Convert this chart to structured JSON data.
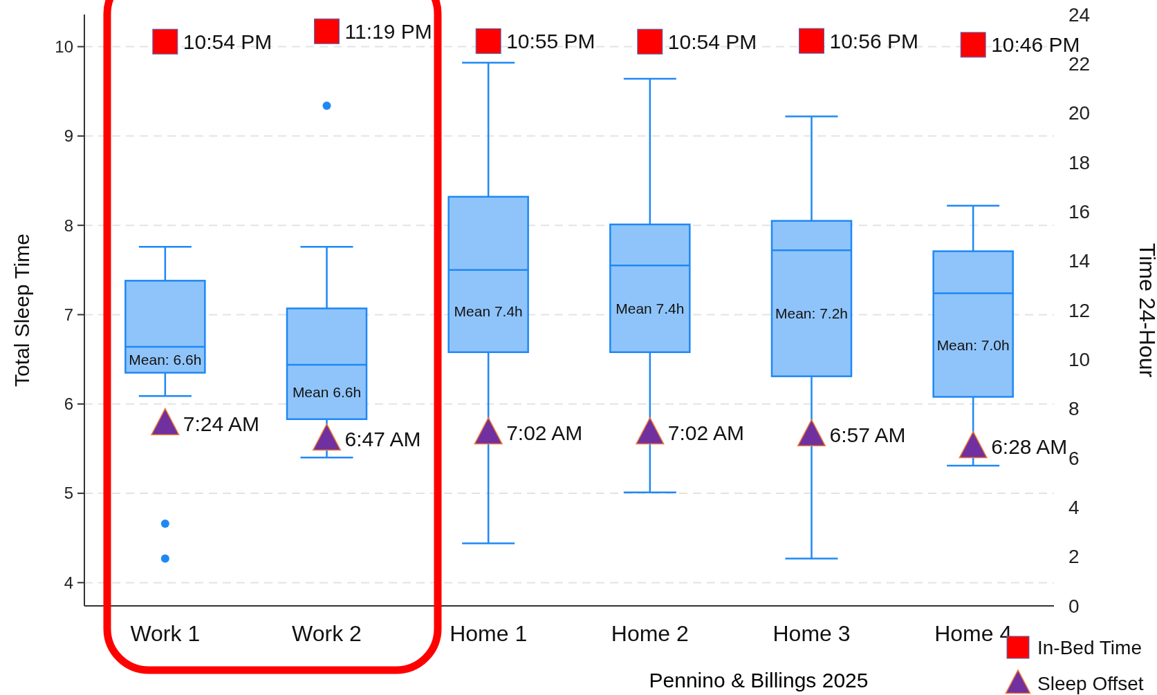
{
  "chart_data": {
    "type": "box",
    "ylabel": "Total Sleep Time",
    "y2label": "Time 24-Hour",
    "categories": [
      "Work 1",
      "Work 2",
      "Home 1",
      "Home 2",
      "Home 3",
      "Home 4"
    ],
    "ylim": [
      3.74,
      10.36
    ],
    "yticks": [
      4,
      5,
      6,
      7,
      8,
      9,
      10
    ],
    "y2lim": [
      0,
      24
    ],
    "y2ticks": [
      0,
      2,
      4,
      6,
      8,
      10,
      12,
      14,
      16,
      18,
      20,
      22,
      24
    ],
    "grid": "y",
    "legend": "bottom right",
    "series": [
      {
        "color": "#1e88f5",
        "boxes": [
          {
            "low": 6.09,
            "q1": 6.35,
            "median": 6.64,
            "q3": 7.38,
            "high": 7.76,
            "outliers": [
              4.66,
              4.27
            ]
          },
          {
            "low": 5.4,
            "q1": 5.83,
            "median": 6.44,
            "q3": 7.07,
            "high": 7.76,
            "outliers": [
              9.34
            ]
          },
          {
            "low": 4.44,
            "q1": 6.58,
            "median": 7.5,
            "q3": 8.32,
            "high": 9.82
          },
          {
            "low": 5.01,
            "q1": 6.58,
            "median": 7.55,
            "q3": 8.01,
            "high": 9.64
          },
          {
            "low": 4.27,
            "q1": 6.31,
            "median": 7.72,
            "q3": 8.05,
            "high": 9.22
          },
          {
            "low": 5.31,
            "q1": 6.08,
            "median": 7.24,
            "q3": 7.71,
            "high": 8.22
          }
        ]
      },
      {
        "type": "scatter",
        "name": "In-Bed Time",
        "axis": "y2",
        "marker": "square",
        "color": "#ff0000",
        "values": [
          22.9,
          23.32,
          22.92,
          22.9,
          22.93,
          22.77
        ],
        "value_labels": [
          "10:54 PM",
          "11:19 PM",
          "10:55 PM",
          "10:54 PM",
          "10:56 PM",
          "10:46 PM"
        ]
      },
      {
        "type": "scatter",
        "name": "Sleep Offset",
        "axis": "y2",
        "marker": "triangle",
        "color": "#7030a0",
        "values": [
          7.4,
          6.78,
          7.03,
          7.03,
          6.95,
          6.47
        ],
        "value_labels": [
          "7:24 AM",
          "6:47 AM",
          "7:02 AM",
          "7:02 AM",
          "6:57 AM",
          "6:28 AM"
        ]
      }
    ],
    "annotations": [
      "Mean: 6.6h",
      "Mean 6.6h",
      "Mean 7.4h",
      "Mean 7.4h",
      "Mean: 7.2h",
      "Mean: 7.0h",
      "Pennino & Billings 2025"
    ]
  }
}
